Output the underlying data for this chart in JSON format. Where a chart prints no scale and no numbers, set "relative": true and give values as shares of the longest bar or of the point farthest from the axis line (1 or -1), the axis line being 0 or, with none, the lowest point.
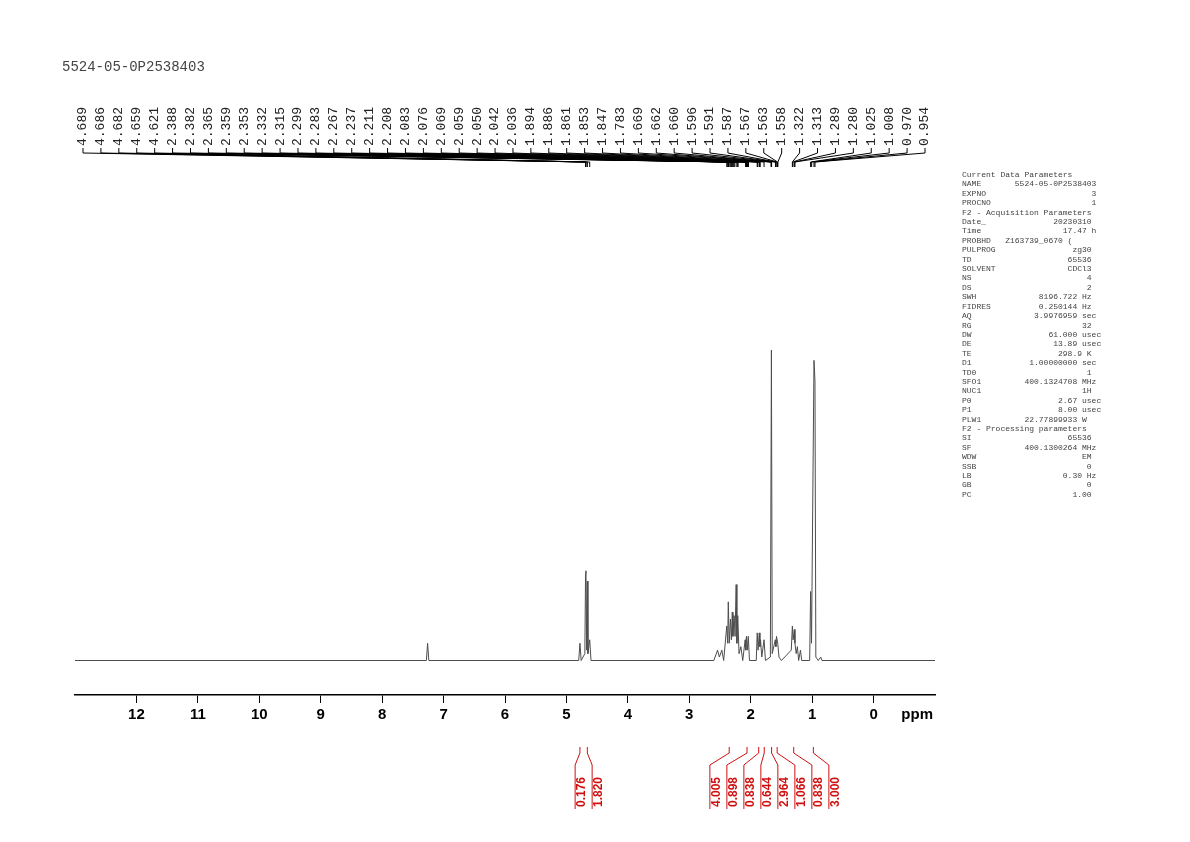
{
  "chart_data": {
    "type": "line",
    "title": "5524-05-0P2538403",
    "xlabel": "ppm",
    "relative": true,
    "color": "#4d4d4d",
    "legend": false,
    "grid": false,
    "marker": "none",
    "xlim": [
      13,
      -1
    ],
    "xticks": [
      12,
      11,
      10,
      9,
      8,
      7,
      6,
      5,
      4,
      3,
      2,
      1,
      0
    ],
    "x": [
      13,
      7.28,
      7.26,
      7.24,
      4.8,
      4.78,
      4.76,
      4.7,
      4.689,
      4.682,
      4.67,
      4.66,
      4.65,
      4.621,
      4.6,
      2.6,
      2.54,
      2.51,
      2.47,
      2.44,
      2.39,
      2.375,
      2.365,
      2.35,
      2.33,
      2.315,
      2.3,
      2.29,
      2.27,
      2.255,
      2.237,
      2.225,
      2.211,
      2.19,
      2.16,
      2.13,
      2.09,
      2.08,
      2.07,
      2.055,
      2.04,
      2.02,
      1.91,
      1.894,
      1.88,
      1.861,
      1.85,
      1.84,
      1.82,
      1.783,
      1.76,
      1.68,
      1.663,
      1.65,
      1.6,
      1.59,
      1.58,
      1.56,
      1.54,
      1.5,
      1.34,
      1.322,
      1.31,
      1.29,
      1.28,
      1.26,
      1.24,
      1.22,
      1.19,
      1.17,
      1.04,
      1.025,
      1.01,
      0.97,
      0.954,
      0.94,
      0.9,
      0.86,
      0.84,
      -1
    ],
    "values": [
      0.1,
      0.1,
      0.15,
      0.1,
      0.1,
      0.15,
      0.1,
      0.12,
      0.35,
      0.36,
      0.13,
      0.33,
      0.12,
      0.16,
      0.1,
      0.1,
      0.13,
      0.11,
      0.13,
      0.1,
      0.2,
      0.15,
      0.27,
      0.15,
      0.22,
      0.16,
      0.24,
      0.17,
      0.23,
      0.17,
      0.32,
      0.15,
      0.23,
      0.12,
      0.14,
      0.1,
      0.16,
      0.13,
      0.17,
      0.13,
      0.17,
      0.1,
      0.1,
      0.18,
      0.13,
      0.18,
      0.14,
      0.16,
      0.11,
      0.16,
      0.1,
      0.11,
      1,
      0.12,
      0.16,
      0.14,
      0.17,
      0.15,
      0.11,
      0.1,
      0.13,
      0.2,
      0.16,
      0.19,
      0.15,
      0.12,
      0.14,
      0.1,
      0.13,
      0.1,
      0.1,
      0.3,
      0.15,
      0.97,
      0.91,
      0.11,
      0.1,
      0.11,
      0.1,
      0.1
    ],
    "annotations": [
      {
        "text": "4.689",
        "x": 4.689
      },
      {
        "text": "4.686",
        "x": 4.686
      },
      {
        "text": "4.682",
        "x": 4.682
      },
      {
        "text": "4.659",
        "x": 4.659
      },
      {
        "text": "4.621",
        "x": 4.621
      },
      {
        "text": "2.388",
        "x": 2.388
      },
      {
        "text": "2.382",
        "x": 2.382
      },
      {
        "text": "2.365",
        "x": 2.365
      },
      {
        "text": "2.359",
        "x": 2.359
      },
      {
        "text": "2.353",
        "x": 2.353
      },
      {
        "text": "2.332",
        "x": 2.332
      },
      {
        "text": "2.315",
        "x": 2.315
      },
      {
        "text": "2.299",
        "x": 2.299
      },
      {
        "text": "2.283",
        "x": 2.283
      },
      {
        "text": "2.267",
        "x": 2.267
      },
      {
        "text": "2.237",
        "x": 2.237
      },
      {
        "text": "2.211",
        "x": 2.211
      },
      {
        "text": "2.208",
        "x": 2.208
      },
      {
        "text": "2.083",
        "x": 2.083
      },
      {
        "text": "2.076",
        "x": 2.076
      },
      {
        "text": "2.069",
        "x": 2.069
      },
      {
        "text": "2.059",
        "x": 2.059
      },
      {
        "text": "2.050",
        "x": 2.05
      },
      {
        "text": "2.042",
        "x": 2.042
      },
      {
        "text": "2.036",
        "x": 2.036
      },
      {
        "text": "1.894",
        "x": 1.894
      },
      {
        "text": "1.886",
        "x": 1.886
      },
      {
        "text": "1.861",
        "x": 1.861
      },
      {
        "text": "1.853",
        "x": 1.853
      },
      {
        "text": "1.847",
        "x": 1.847
      },
      {
        "text": "1.783",
        "x": 1.783
      },
      {
        "text": "1.669",
        "x": 1.669
      },
      {
        "text": "1.662",
        "x": 1.662
      },
      {
        "text": "1.660",
        "x": 1.66
      },
      {
        "text": "1.596",
        "x": 1.596
      },
      {
        "text": "1.591",
        "x": 1.591
      },
      {
        "text": "1.587",
        "x": 1.587
      },
      {
        "text": "1.567",
        "x": 1.567
      },
      {
        "text": "1.563",
        "x": 1.563
      },
      {
        "text": "1.558",
        "x": 1.558
      },
      {
        "text": "1.322",
        "x": 1.322
      },
      {
        "text": "1.313",
        "x": 1.313
      },
      {
        "text": "1.289",
        "x": 1.289
      },
      {
        "text": "1.280",
        "x": 1.28
      },
      {
        "text": "1.025",
        "x": 1.025
      },
      {
        "text": "1.008",
        "x": 1.008
      },
      {
        "text": "0.970",
        "x": 0.97
      },
      {
        "text": "0.954",
        "x": 0.954
      },
      {
        "text": "0.176",
        "x": 4.78
      },
      {
        "text": "1.820",
        "x": 4.66
      },
      {
        "text": "4.005",
        "x": 2.35
      },
      {
        "text": "0.898",
        "x": 2.06
      },
      {
        "text": "0.838",
        "x": 1.87
      },
      {
        "text": "0.644",
        "x": 1.78
      },
      {
        "text": "2.964",
        "x": 1.66
      },
      {
        "text": "1.066",
        "x": 1.57
      },
      {
        "text": "0.838",
        "x": 1.3
      },
      {
        "text": "3.000",
        "x": 0.98
      },
      "Current Data Parameters",
      "NAME       5524-05-0P2538403",
      "EXPNO                      3",
      "PROCNO                     1",
      "F2 - Acquisition Parameters",
      "Date_              20230310",
      "Time                 17.47 h",
      "PROBHD   Z163739_0670 (",
      "PULPROG                zg30",
      "TD                    65536",
      "SOLVENT               CDCl3",
      "NS                        4",
      "DS                        2",
      "SWH             8196.722 Hz",
      "FIDRES          0.250144 Hz",
      "AQ             3.9976959 sec",
      "RG                       32",
      "DW                61.000 usec",
      "DE                 13.89 usec",
      "TE                  298.9 K",
      "D1            1.00000000 sec",
      "TD0                       1",
      "SFO1         400.1324708 MHz",
      "NUC1                     1H",
      "P0                  2.67 usec",
      "P1                  8.00 usec",
      "PLW1         22.77899933 W",
      "F2 - Processing parameters",
      "SI                    65536",
      "SF           400.1300264 MHz",
      "WDW                      EM",
      "SSB                       0",
      "LB                   0.30 Hz",
      "GB                        0",
      "PC                     1.00"
    ]
  }
}
